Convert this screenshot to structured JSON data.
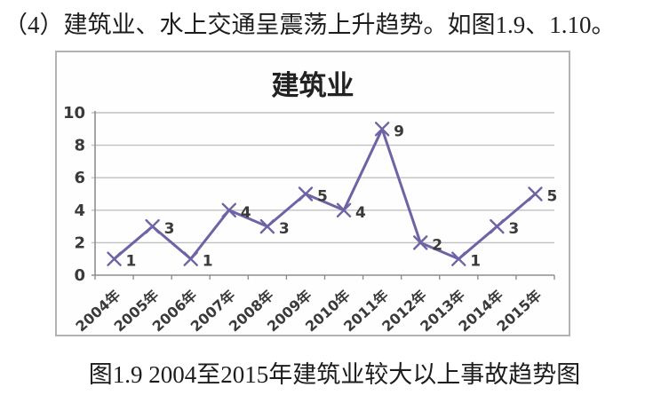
{
  "page": {
    "heading": "（4）建筑业、水上交通呈震荡上升趋势。如图1.9、1.10。",
    "caption": "图1.9 2004至2015年建筑业较大以上事故趋势图"
  },
  "chart_data": {
    "type": "line",
    "title": "建筑业",
    "categories": [
      "2004年",
      "2005年",
      "2006年",
      "2007年",
      "2008年",
      "2009年",
      "2010年",
      "2011年",
      "2012年",
      "2013年",
      "2014年",
      "2015年"
    ],
    "values": [
      1,
      3,
      1,
      4,
      3,
      5,
      4,
      9,
      2,
      1,
      3,
      5
    ],
    "data_labels": [
      1,
      3,
      1,
      4,
      3,
      5,
      4,
      9,
      2,
      1,
      3,
      5
    ],
    "xlabel": "",
    "ylabel": "",
    "ylim": [
      0,
      10
    ],
    "yticks": [
      0,
      2,
      4,
      6,
      8,
      10
    ],
    "grid": true,
    "legend_position": "none",
    "marker": "x",
    "colors": {
      "line": "#6f63a5",
      "grid": "#c2c0c0",
      "axis": "#8f8d8d",
      "border": "#b3b1b1",
      "text": "#3a3a3a"
    }
  }
}
